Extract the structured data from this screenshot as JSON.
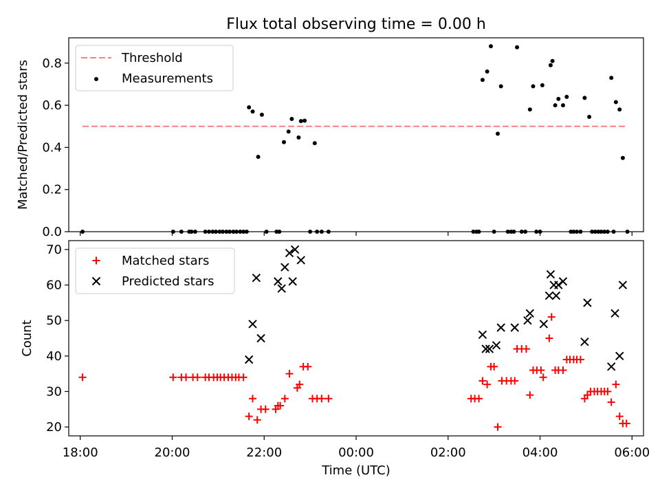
{
  "title": "Flux total observing time = 0.00 h",
  "chart_data": [
    {
      "type": "scatter",
      "panel": "top",
      "ylabel": "Matched/Predicted stars",
      "xlim": [
        17.75,
        30.25
      ],
      "ylim": [
        0,
        0.92
      ],
      "yticks": [
        0.0,
        0.2,
        0.4,
        0.6,
        0.8
      ],
      "ytick_labels": [
        "0.0",
        "0.2",
        "0.4",
        "0.6",
        "0.8"
      ],
      "legend": "top-left",
      "threshold": {
        "name": "Threshold",
        "value": 0.5,
        "x_range": [
          18.05,
          29.9
        ],
        "color": "#ff7f7f"
      },
      "series": [
        {
          "name": "Measurements",
          "color": "#000000",
          "marker": "dot",
          "points": [
            [
              18.05,
              0
            ],
            [
              20.02,
              0
            ],
            [
              20.2,
              0
            ],
            [
              20.37,
              0
            ],
            [
              20.42,
              0
            ],
            [
              20.5,
              0
            ],
            [
              20.72,
              0
            ],
            [
              20.8,
              0
            ],
            [
              20.88,
              0
            ],
            [
              20.95,
              0
            ],
            [
              21.03,
              0
            ],
            [
              21.1,
              0
            ],
            [
              21.18,
              0
            ],
            [
              21.25,
              0
            ],
            [
              21.33,
              0
            ],
            [
              21.4,
              0
            ],
            [
              21.48,
              0
            ],
            [
              21.55,
              0
            ],
            [
              21.62,
              0
            ],
            [
              21.67,
              0.59
            ],
            [
              21.75,
              0.57
            ],
            [
              21.87,
              0.355
            ],
            [
              21.95,
              0.555
            ],
            [
              22.05,
              0
            ],
            [
              22.27,
              0
            ],
            [
              22.33,
              0
            ],
            [
              22.43,
              0.425
            ],
            [
              22.53,
              0.475
            ],
            [
              22.6,
              0.535
            ],
            [
              22.75,
              0.447
            ],
            [
              22.8,
              0.525
            ],
            [
              22.88,
              0.527
            ],
            [
              23.0,
              0
            ],
            [
              23.1,
              0.42
            ],
            [
              23.15,
              0
            ],
            [
              23.25,
              0
            ],
            [
              23.4,
              0
            ],
            [
              26.55,
              0
            ],
            [
              26.62,
              0
            ],
            [
              26.67,
              0
            ],
            [
              26.75,
              0.72
            ],
            [
              26.85,
              0.76
            ],
            [
              26.93,
              0.88
            ],
            [
              27.0,
              0
            ],
            [
              27.08,
              0.465
            ],
            [
              27.15,
              0.69
            ],
            [
              27.3,
              0
            ],
            [
              27.37,
              0
            ],
            [
              27.43,
              0
            ],
            [
              27.5,
              0.875
            ],
            [
              27.6,
              0
            ],
            [
              27.68,
              0
            ],
            [
              27.78,
              0.58
            ],
            [
              27.85,
              0.69
            ],
            [
              27.92,
              0
            ],
            [
              28.0,
              0
            ],
            [
              28.05,
              0.695
            ],
            [
              28.23,
              0.79
            ],
            [
              28.27,
              0.81
            ],
            [
              28.33,
              0.6
            ],
            [
              28.4,
              0.63
            ],
            [
              28.5,
              0.6
            ],
            [
              28.58,
              0.64
            ],
            [
              28.67,
              0
            ],
            [
              28.73,
              0
            ],
            [
              28.8,
              0
            ],
            [
              28.88,
              0
            ],
            [
              28.97,
              0.635
            ],
            [
              29.07,
              0.545
            ],
            [
              29.13,
              0
            ],
            [
              29.2,
              0
            ],
            [
              29.27,
              0
            ],
            [
              29.33,
              0
            ],
            [
              29.4,
              0
            ],
            [
              29.47,
              0
            ],
            [
              29.55,
              0.73
            ],
            [
              29.6,
              0
            ],
            [
              29.65,
              0.615
            ],
            [
              29.73,
              0.58
            ],
            [
              29.8,
              0.35
            ],
            [
              29.9,
              0
            ]
          ]
        }
      ]
    },
    {
      "type": "scatter",
      "panel": "bottom",
      "xlabel": "Time (UTC)",
      "ylabel": "Count",
      "xlim": [
        17.75,
        30.25
      ],
      "ylim": [
        17.5,
        72.5
      ],
      "xticks": [
        18,
        20,
        22,
        24,
        26,
        28,
        30
      ],
      "xtick_labels": [
        "18:00",
        "20:00",
        "22:00",
        "00:00",
        "02:00",
        "04:00",
        "06:00"
      ],
      "yticks": [
        20,
        30,
        40,
        50,
        60,
        70
      ],
      "ytick_labels": [
        "20",
        "30",
        "40",
        "50",
        "60",
        "70"
      ],
      "legend": "top-left",
      "series": [
        {
          "name": "Matched stars",
          "color": "#ff0000",
          "marker": "plus",
          "points": [
            [
              18.05,
              34
            ],
            [
              20.02,
              34
            ],
            [
              20.2,
              34
            ],
            [
              20.3,
              34
            ],
            [
              20.45,
              34
            ],
            [
              20.55,
              34
            ],
            [
              20.72,
              34
            ],
            [
              20.8,
              34
            ],
            [
              20.9,
              34
            ],
            [
              20.98,
              34
            ],
            [
              21.05,
              34
            ],
            [
              21.13,
              34
            ],
            [
              21.22,
              34
            ],
            [
              21.3,
              34
            ],
            [
              21.38,
              34
            ],
            [
              21.45,
              34
            ],
            [
              21.55,
              34
            ],
            [
              21.67,
              23
            ],
            [
              21.75,
              28
            ],
            [
              21.85,
              22
            ],
            [
              21.93,
              25
            ],
            [
              22.03,
              25
            ],
            [
              22.25,
              25
            ],
            [
              22.3,
              26
            ],
            [
              22.35,
              26
            ],
            [
              22.45,
              28
            ],
            [
              22.55,
              35
            ],
            [
              22.72,
              31
            ],
            [
              22.77,
              32
            ],
            [
              22.85,
              37
            ],
            [
              22.95,
              37
            ],
            [
              23.05,
              28
            ],
            [
              23.15,
              28
            ],
            [
              23.25,
              28
            ],
            [
              23.4,
              28
            ],
            [
              26.5,
              28
            ],
            [
              26.58,
              28
            ],
            [
              26.67,
              28
            ],
            [
              26.75,
              33
            ],
            [
              26.85,
              32
            ],
            [
              26.93,
              37
            ],
            [
              27.0,
              37
            ],
            [
              27.08,
              20
            ],
            [
              27.17,
              33
            ],
            [
              27.27,
              33
            ],
            [
              27.37,
              33
            ],
            [
              27.45,
              33
            ],
            [
              27.5,
              42
            ],
            [
              27.6,
              42
            ],
            [
              27.7,
              42
            ],
            [
              27.78,
              29
            ],
            [
              27.85,
              36
            ],
            [
              27.93,
              36
            ],
            [
              28.02,
              36
            ],
            [
              28.07,
              34
            ],
            [
              28.2,
              45
            ],
            [
              28.25,
              51
            ],
            [
              28.33,
              36
            ],
            [
              28.4,
              36
            ],
            [
              28.5,
              36
            ],
            [
              28.58,
              39
            ],
            [
              28.65,
              39
            ],
            [
              28.73,
              39
            ],
            [
              28.8,
              39
            ],
            [
              28.88,
              39
            ],
            [
              28.97,
              28
            ],
            [
              29.03,
              29
            ],
            [
              29.1,
              30
            ],
            [
              29.18,
              30
            ],
            [
              29.25,
              30
            ],
            [
              29.33,
              30
            ],
            [
              29.4,
              30
            ],
            [
              29.47,
              30
            ],
            [
              29.55,
              27
            ],
            [
              29.65,
              32
            ],
            [
              29.73,
              23
            ],
            [
              29.8,
              21
            ],
            [
              29.88,
              21
            ]
          ]
        },
        {
          "name": "Predicted stars",
          "color": "#000000",
          "marker": "x",
          "points": [
            [
              21.67,
              39
            ],
            [
              21.75,
              49
            ],
            [
              21.83,
              62
            ],
            [
              21.93,
              45
            ],
            [
              22.3,
              61
            ],
            [
              22.38,
              59
            ],
            [
              22.45,
              65
            ],
            [
              22.55,
              69
            ],
            [
              22.62,
              61
            ],
            [
              22.67,
              70
            ],
            [
              22.8,
              67
            ],
            [
              26.75,
              46
            ],
            [
              26.82,
              42
            ],
            [
              26.9,
              42
            ],
            [
              27.05,
              43
            ],
            [
              27.15,
              48
            ],
            [
              27.45,
              48
            ],
            [
              27.73,
              50
            ],
            [
              27.78,
              52
            ],
            [
              28.08,
              49
            ],
            [
              28.2,
              57
            ],
            [
              28.23,
              63
            ],
            [
              28.3,
              60
            ],
            [
              28.35,
              57
            ],
            [
              28.4,
              60
            ],
            [
              28.5,
              61
            ],
            [
              28.97,
              44
            ],
            [
              29.03,
              55
            ],
            [
              29.55,
              37
            ],
            [
              29.63,
              52
            ],
            [
              29.73,
              40
            ],
            [
              29.8,
              60
            ]
          ]
        }
      ]
    }
  ]
}
